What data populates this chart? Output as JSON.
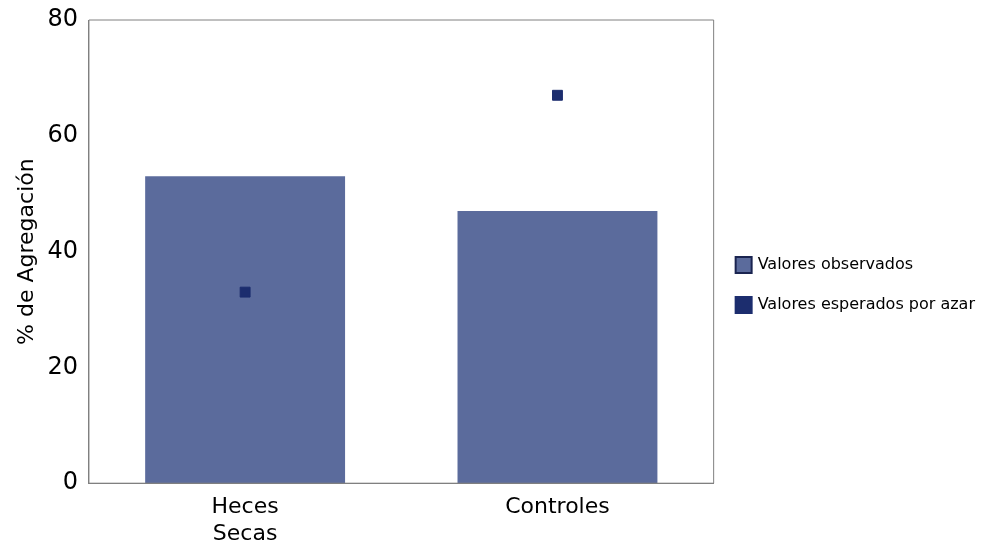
{
  "chart_data": {
    "type": "bar",
    "ylabel": "% de Agregación",
    "categories": [
      "Heces Secas",
      "Controles"
    ],
    "series": [
      {
        "name": "Valores observados",
        "color": "#5b6b9c",
        "values": [
          53,
          47
        ]
      },
      {
        "name": "Valores esperados por azar",
        "type": "scatter",
        "color": "#1c2d6e",
        "marker": "square",
        "x": [
          "Heces Secas",
          "Controles"
        ],
        "values": [
          33,
          67
        ]
      }
    ],
    "ylim": [
      0,
      80
    ],
    "yticks": [
      0,
      20,
      40,
      60,
      80
    ],
    "grid": false,
    "legend": "right"
  }
}
